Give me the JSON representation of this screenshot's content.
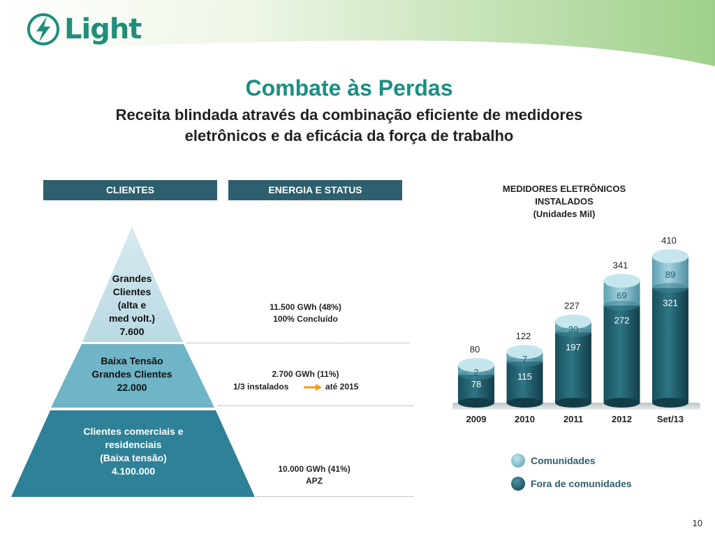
{
  "title": "Combate às Perdas",
  "subtitle_line1": "Receita blindada através da combinação eficiente de medidores",
  "subtitle_line2": "eletrônicos e da eficácia da força de trabalho",
  "logo": {
    "text": "Light"
  },
  "headers": {
    "clientes": "CLIENTES",
    "energia": "ENERGIA E STATUS"
  },
  "pyramid": {
    "top": [
      "Grandes",
      "Clientes",
      "(alta e",
      "med volt.)",
      "7.600"
    ],
    "middle": [
      "Baixa Tensão",
      "Grandes Clientes",
      "22.000"
    ],
    "bottom": [
      "Clientes comerciais e",
      "residenciais",
      "(Baixa tensão)",
      "4.100.000"
    ]
  },
  "energy": {
    "top": [
      "11.500 GWh (48%)",
      "100% Concluído"
    ],
    "middle_line1": "2.700 GWh (11%)",
    "middle_left": "1/3 instalados",
    "middle_right": "até 2015",
    "bottom": [
      "10.000 GWh (41%)",
      "APZ"
    ]
  },
  "chart_data": {
    "type": "bar",
    "stacked": true,
    "title": "MEDIDORES ELETRÔNICOS INSTALADOS",
    "title_lines": [
      "MEDIDORES ELETRÔNICOS",
      "INSTALADOS",
      "(Unidades Mil)"
    ],
    "ylabel": "(Unidades Mil)",
    "categories": [
      "2009",
      "2010",
      "2011",
      "2012",
      "Set/13"
    ],
    "series": [
      {
        "name": "Fora de comunidades",
        "values": [
          78,
          115,
          197,
          272,
          321
        ],
        "color": "#1f5e6e"
      },
      {
        "name": "Comunidades",
        "values": [
          2,
          7,
          30,
          69,
          89
        ],
        "color": "#6fb4c7"
      }
    ],
    "totals": [
      80,
      122,
      227,
      341,
      410
    ],
    "ylim": [
      0,
      410
    ]
  },
  "legend": {
    "communities": "Comunidades",
    "outside": "Fora de comunidades"
  },
  "page_number": "10"
}
